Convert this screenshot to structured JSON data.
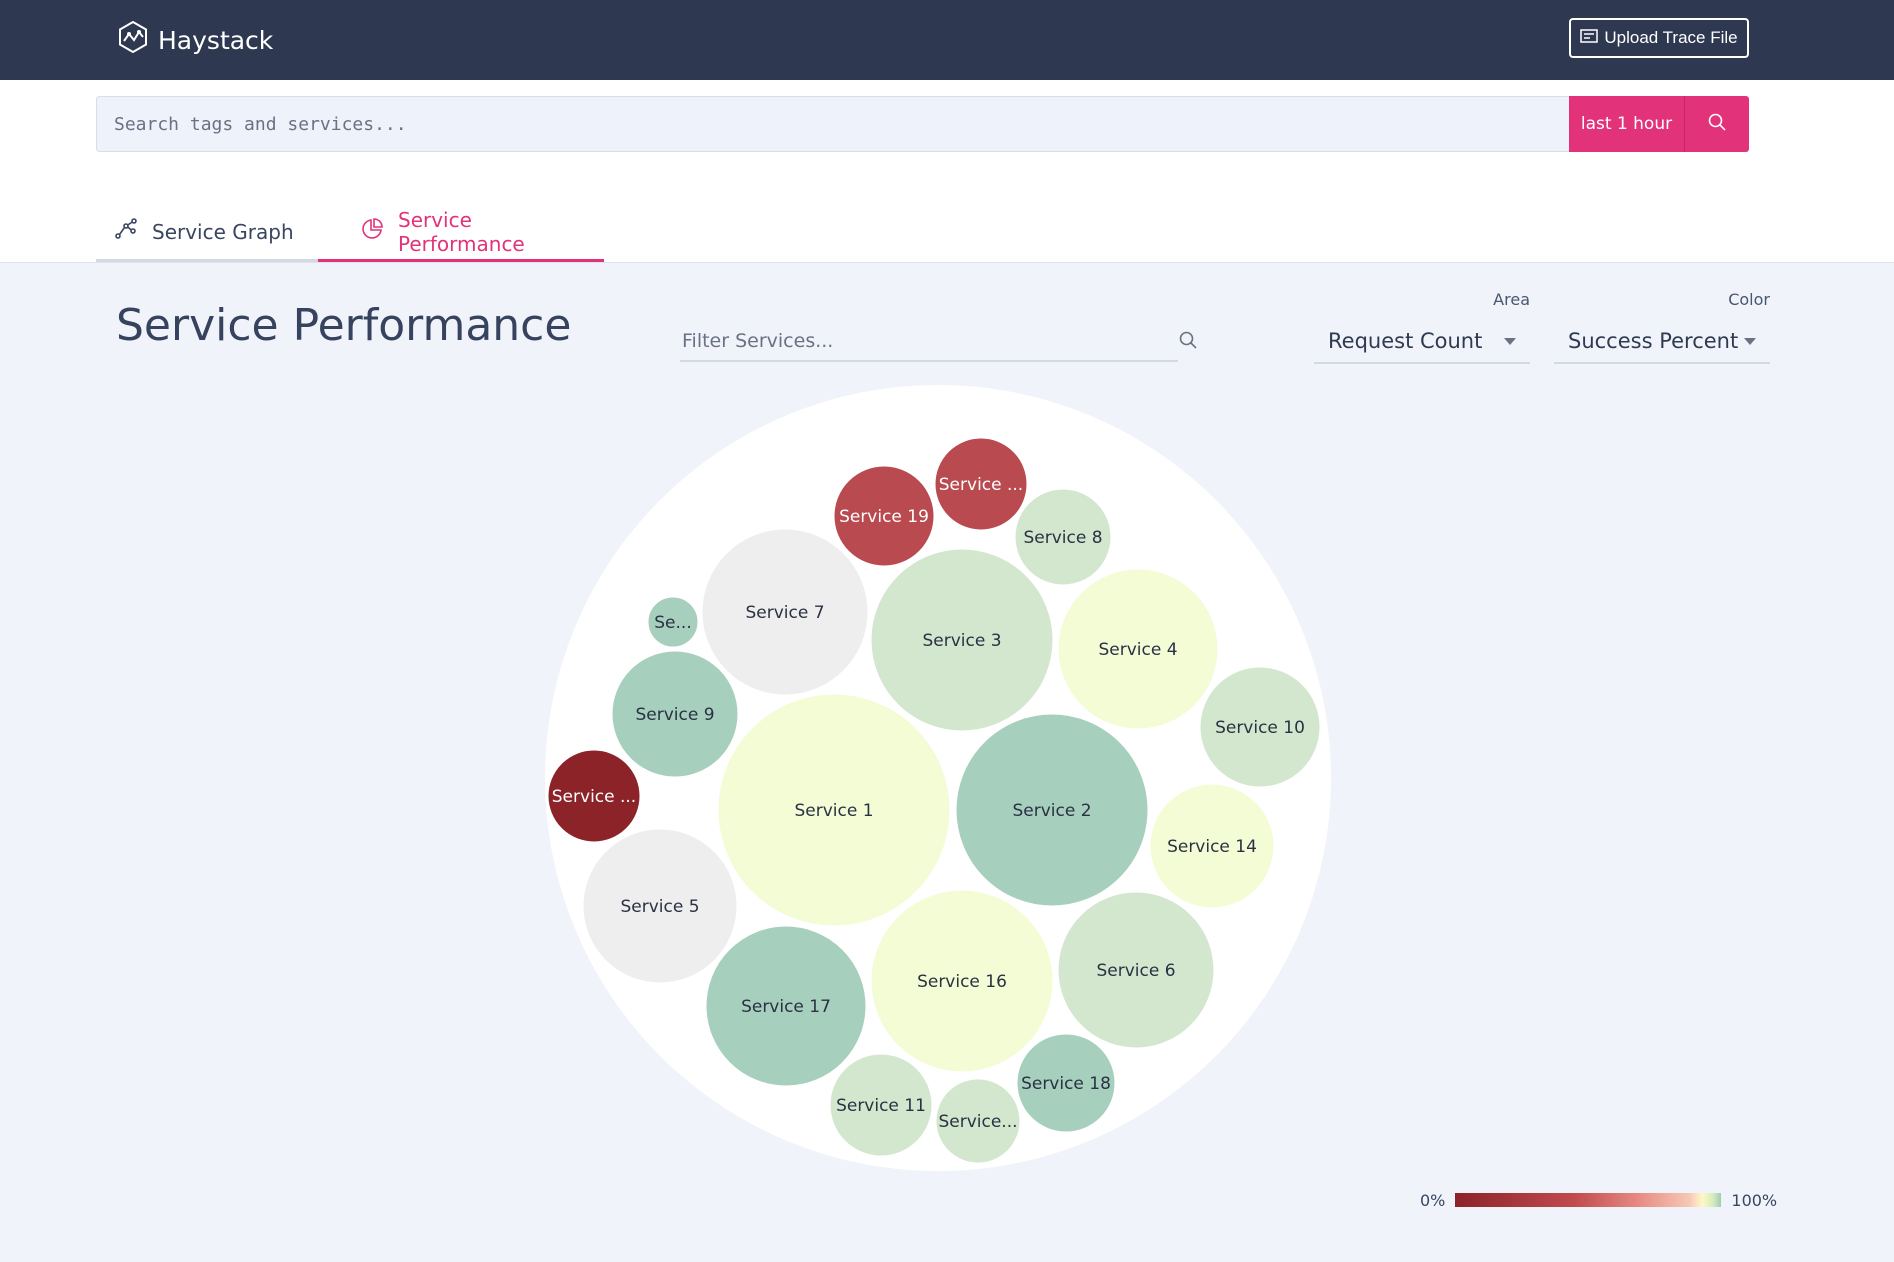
{
  "header": {
    "brand": "Haystack",
    "upload_label": "Upload Trace File"
  },
  "search": {
    "placeholder": "Search tags and services...",
    "time_range": "last 1 hour"
  },
  "tabs": [
    {
      "label": "Service Graph",
      "icon": "graph-icon",
      "active": false
    },
    {
      "label": "Service Performance",
      "icon": "pie-chart-icon",
      "active": true
    }
  ],
  "page": {
    "title": "Service Performance",
    "filter_placeholder": "Filter Services..."
  },
  "controls": {
    "area": {
      "caption": "Area",
      "value": "Request Count"
    },
    "color": {
      "caption": "Color",
      "value": "Success Percent"
    }
  },
  "legend": {
    "min": "0%",
    "max": "100%"
  },
  "colors": {
    "accent": "#e2327a",
    "topbar": "#2e3850"
  },
  "chart_data": {
    "type": "bubble",
    "area_metric": "Request Count",
    "color_metric": "Success Percent",
    "color_scale": [
      "#8b2328",
      "#c14b4e",
      "#f6c8b6",
      "#f4fcd6",
      "#d3e7cf",
      "#a6cfbd"
    ],
    "bubbles": [
      {
        "label": "Service 1",
        "color": "#f4fcd6"
      },
      {
        "label": "Service 2",
        "color": "#a6cfbd"
      },
      {
        "label": "Service 3",
        "color": "#d3e7cf"
      },
      {
        "label": "Service 4",
        "color": "#f4fcd6"
      },
      {
        "label": "Service 5",
        "color": "#eeeeee"
      },
      {
        "label": "Service 6",
        "color": "#d3e7cf"
      },
      {
        "label": "Service 7",
        "color": "#eeeeee"
      },
      {
        "label": "Service 8",
        "color": "#d3e7cf"
      },
      {
        "label": "Service 9",
        "color": "#a6cfbd"
      },
      {
        "label": "Service 10",
        "color": "#d3e7cf"
      },
      {
        "label": "Service 11",
        "color": "#d3e7cf"
      },
      {
        "label": "Service 14",
        "color": "#f4fcd6"
      },
      {
        "label": "Service 16",
        "color": "#f4fcd6"
      },
      {
        "label": "Service 17",
        "color": "#a6cfbd"
      },
      {
        "label": "Service 18",
        "color": "#a6cfbd"
      },
      {
        "label": "Service 19",
        "color": "#b94a4f"
      },
      {
        "label": "Service ...",
        "color": "#b94a4f"
      },
      {
        "label": "Service ...",
        "color": "#8b2328"
      },
      {
        "label": "Se...",
        "color": "#a6cfbd"
      },
      {
        "label": "Service...",
        "color": "#d3e7cf"
      }
    ]
  }
}
